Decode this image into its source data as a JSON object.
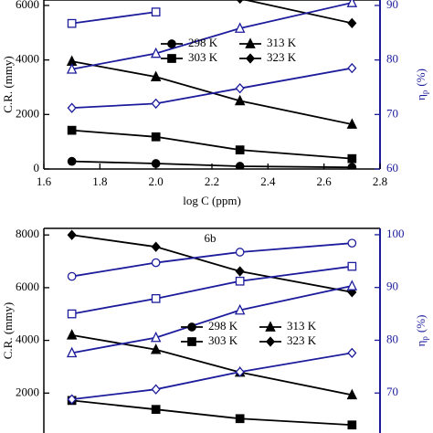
{
  "chart_data": [
    {
      "type": "line",
      "xlabel": "log C (ppm)",
      "ylabel": "C.R. (mmy)",
      "y2label_symbol": "η",
      "y2label_subscript": "p",
      "y2label_unit": "(%)",
      "x": [
        1.7,
        2.0,
        2.3,
        2.7
      ],
      "xlim": [
        1.6,
        2.8
      ],
      "xticks": [
        1.6,
        1.8,
        {
          "value": 2,
          "label": "2.0"
        },
        2.2,
        2.4,
        2.6,
        2.8
      ],
      "ylim": [
        0,
        6200
      ],
      "yticks": [
        0,
        2000,
        4000,
        6000
      ],
      "y2lim": [
        60,
        91
      ],
      "y2ticks": [
        60,
        70,
        80,
        90
      ],
      "legend": "upper center",
      "axis_color": "#000000",
      "y2_axis_color": "#1c1c9c",
      "series": [
        {
          "name": "298 K",
          "marker": "circle",
          "filled": true,
          "color": "#000000",
          "values": [
            280,
            200,
            100,
            60
          ]
        },
        {
          "name": "303 K",
          "marker": "square",
          "filled": true,
          "color": "#000000",
          "values": [
            1420,
            1180,
            700,
            380
          ]
        },
        {
          "name": "313 K",
          "marker": "triangle",
          "filled": true,
          "color": "#000000",
          "values": [
            3950,
            3380,
            2500,
            1640
          ]
        },
        {
          "name": "323 K",
          "marker": "diamond",
          "filled": true,
          "color": "#000000",
          "values": [
            null,
            null,
            6250,
            5350
          ]
        },
        {
          "marker": "square",
          "filled": false,
          "color": "#1c1c9c",
          "axis": "y2",
          "values": [
            86.7,
            88.8,
            null,
            null
          ]
        },
        {
          "marker": "triangle",
          "filled": false,
          "color": "#1c1c9c",
          "axis": "y2",
          "values": [
            78.3,
            81.2,
            85.8,
            90.5
          ]
        },
        {
          "marker": "diamond",
          "filled": false,
          "color": "#1c1c9c",
          "axis": "y2",
          "values": [
            71.2,
            72,
            74.8,
            78.5
          ]
        }
      ]
    },
    {
      "type": "line",
      "ylabel": "C.R. (mmy)",
      "y2label_symbol": "η",
      "y2label_subscript": "p",
      "y2label_unit": "(%)",
      "annotation": "6b",
      "x": [
        1.7,
        2.0,
        2.3,
        2.7
      ],
      "xlim": [
        1.6,
        2.8
      ],
      "ylim": [
        0,
        8250
      ],
      "yticks": [
        2000,
        4000,
        6000,
        8000
      ],
      "y2lim": [
        60,
        101.2
      ],
      "y2ticks": [
        70,
        80,
        90,
        100
      ],
      "legend": "center right",
      "axis_color": "#000000",
      "y2_axis_color": "#1c1c9c",
      "series": [
        {
          "name": "298 K",
          "marker": "circle",
          "filled": true,
          "color": "#000000",
          "values": [
            null,
            null,
            null,
            null
          ]
        },
        {
          "name": "303 K",
          "marker": "square",
          "filled": true,
          "color": "#000000",
          "values": [
            1720,
            1380,
            1030,
            790
          ]
        },
        {
          "name": "313 K",
          "marker": "triangle",
          "filled": true,
          "color": "#000000",
          "values": [
            4200,
            3650,
            2790,
            1930
          ]
        },
        {
          "name": "323 K",
          "marker": "diamond",
          "filled": true,
          "color": "#000000",
          "values": [
            8000,
            7550,
            6620,
            5830
          ]
        },
        {
          "marker": "circle",
          "filled": false,
          "color": "#1c1c9c",
          "axis": "y2",
          "values": [
            92.1,
            94.7,
            96.7,
            98.4
          ]
        },
        {
          "marker": "square",
          "filled": false,
          "color": "#1c1c9c",
          "axis": "y2",
          "values": [
            85,
            87.9,
            91.2,
            94
          ]
        },
        {
          "marker": "triangle",
          "filled": false,
          "color": "#1c1c9c",
          "axis": "y2",
          "values": [
            77.6,
            80.5,
            85.7,
            90.3
          ]
        },
        {
          "marker": "diamond",
          "filled": false,
          "color": "#1c1c9c",
          "axis": "y2",
          "values": [
            68.8,
            70.7,
            74,
            77.6
          ]
        }
      ]
    }
  ]
}
